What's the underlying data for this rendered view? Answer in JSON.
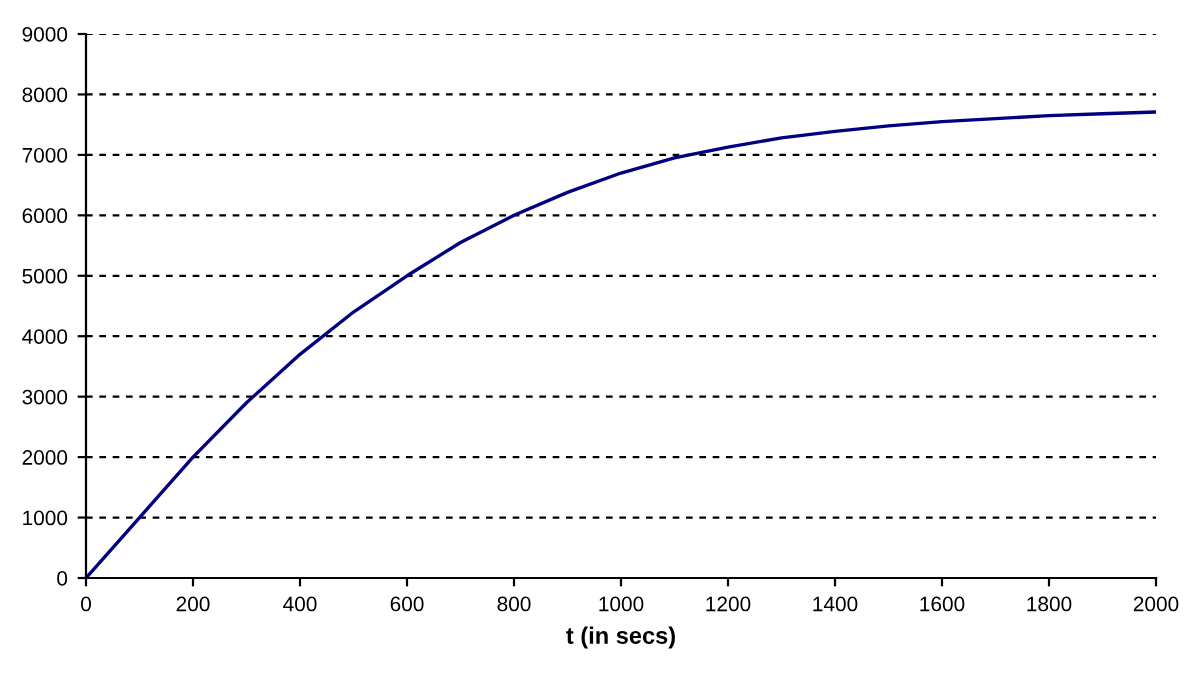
{
  "chart_data": {
    "type": "line",
    "xlabel": "t (in secs)",
    "x": [
      0,
      100,
      200,
      300,
      400,
      500,
      600,
      700,
      800,
      900,
      1000,
      1100,
      1200,
      1300,
      1400,
      1500,
      1600,
      1700,
      1800,
      1900,
      2000
    ],
    "series": [
      {
        "color": "#000080",
        "values": [
          0,
          1000,
          2000,
          2900,
          3700,
          4400,
          5000,
          5550,
          6000,
          6380,
          6700,
          6950,
          7130,
          7280,
          7390,
          7480,
          7550,
          7600,
          7650,
          7680,
          7710
        ]
      }
    ],
    "xlim": [
      0,
      2000
    ],
    "xticks": [
      0,
      200,
      400,
      600,
      800,
      1000,
      1200,
      1400,
      1600,
      1800,
      2000
    ],
    "ylim": [
      0,
      9000
    ],
    "yticks": [
      0,
      1000,
      2000,
      3000,
      4000,
      5000,
      6000,
      7000,
      8000,
      9000
    ],
    "grid": "y",
    "marker": "none",
    "line_style": "solid"
  }
}
